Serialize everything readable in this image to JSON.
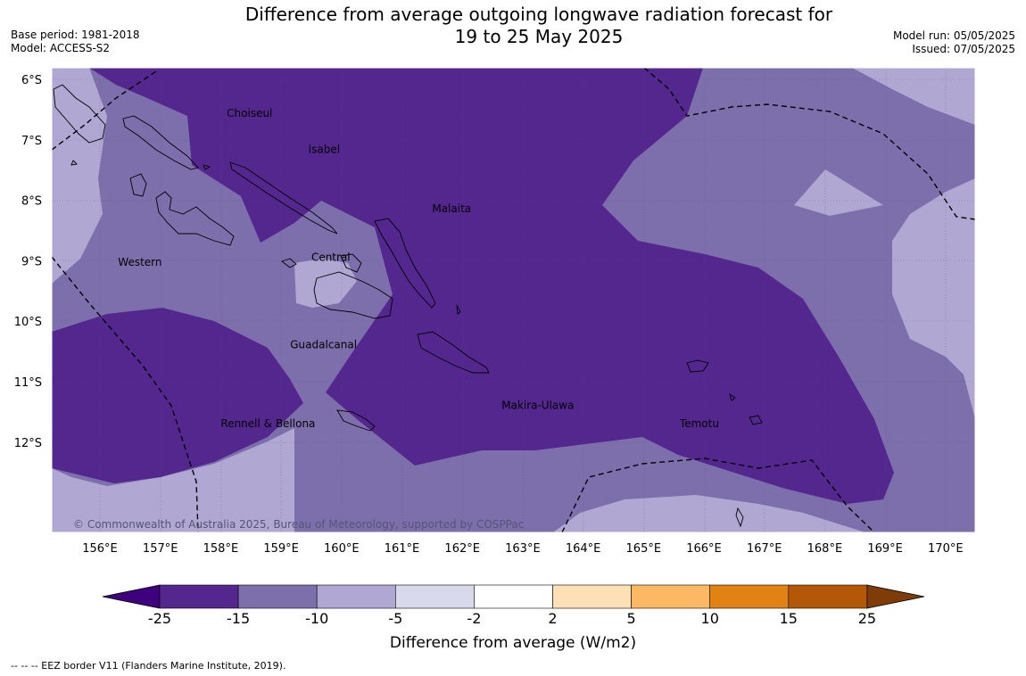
{
  "title": {
    "line1": "Difference from average outgoing longwave radiation forecast for",
    "line2": "19 to 25 May 2025"
  },
  "meta_left": {
    "base_period": "Base period: 1981-2018",
    "model": "Model: ACCESS-S2"
  },
  "meta_right": {
    "model_run": "Model run: 05/05/2025",
    "issued": "Issued: 07/05/2025"
  },
  "map": {
    "lat_ticks": [
      "6°S",
      "7°S",
      "8°S",
      "9°S",
      "10°S",
      "11°S",
      "12°S"
    ],
    "lon_ticks": [
      "156°E",
      "157°E",
      "158°E",
      "159°E",
      "160°E",
      "161°E",
      "162°E",
      "163°E",
      "164°E",
      "165°E",
      "166°E",
      "167°E",
      "168°E",
      "169°E",
      "170°E"
    ],
    "regions": [
      {
        "name": "Choiseul",
        "lon": 158.1,
        "lat": -6.62
      },
      {
        "name": "Isabel",
        "lon": 159.45,
        "lat": -7.22
      },
      {
        "name": "Malaita",
        "lon": 161.5,
        "lat": -8.2
      },
      {
        "name": "Central",
        "lon": 159.5,
        "lat": -9.0
      },
      {
        "name": "Western",
        "lon": 156.3,
        "lat": -9.08
      },
      {
        "name": "Guadalcanal",
        "lon": 159.15,
        "lat": -10.45
      },
      {
        "name": "Makira-Ulawa",
        "lon": 162.65,
        "lat": -11.45
      },
      {
        "name": "Rennell & Bellona",
        "lon": 158.0,
        "lat": -11.75
      },
      {
        "name": "Temotu",
        "lon": 165.6,
        "lat": -11.75
      }
    ],
    "copyright": "© Commonwealth of Australia 2025, Bureau of Meteorology, supported by COSPPac"
  },
  "colorbar": {
    "labels": [
      "-25",
      "-15",
      "-10",
      "-5",
      "-2",
      "2",
      "5",
      "10",
      "15",
      "25"
    ],
    "colors": [
      "#54278f",
      "#7d6fab",
      "#b0a8d2",
      "#d9d9ec",
      "#ffffff",
      "#fee0b6",
      "#fdb863",
      "#e08214",
      "#b35806"
    ],
    "under_color": "#3f007d",
    "over_color": "#7f3b08",
    "title": "Difference from average (W/m2)"
  },
  "footnote": "--  --  -- EEZ border V11 (Flanders Marine Institute, 2019)."
}
